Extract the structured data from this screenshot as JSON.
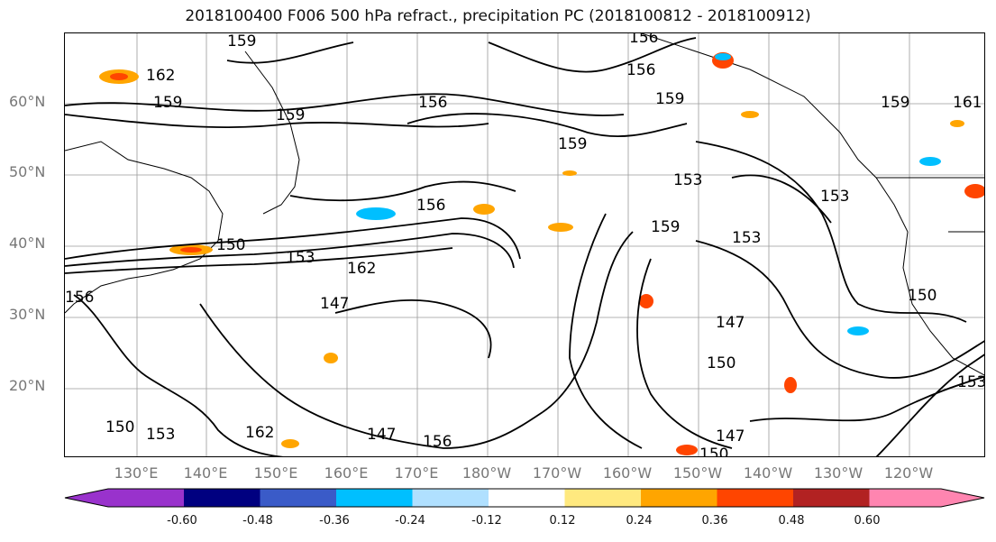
{
  "title": "2018100400 F006 500 hPa refract., precipitation PC (2018100812 - 2018100912)",
  "lat_labels": [
    "60°N",
    "50°N",
    "40°N",
    "30°N",
    "20°N"
  ],
  "lon_labels": [
    "130°E",
    "140°E",
    "150°E",
    "160°E",
    "170°E",
    "180°W",
    "170°W",
    "160°W",
    "150°W",
    "140°W",
    "130°W",
    "120°W"
  ],
  "colorbar": {
    "colors": [
      "#9932cc",
      "#000080",
      "#3a5bc8",
      "#00bfff",
      "#b0e0ff",
      "#ffffff",
      "#ffe97f",
      "#ffa500",
      "#ff4500",
      "#b22222",
      "#ff85b0"
    ],
    "tick_labels": [
      "-0.60",
      "-0.48",
      "-0.36",
      "-0.24",
      "-0.12",
      "0.12",
      "0.24",
      "0.36",
      "0.48",
      "0.60"
    ]
  },
  "contour_labels": [
    "159",
    "156",
    "156",
    "162",
    "159",
    "159",
    "159",
    "156",
    "159",
    "156",
    "153",
    "150",
    "153",
    "162",
    "147",
    "147",
    "150",
    "153",
    "153",
    "150",
    "147",
    "150",
    "153",
    "156",
    "162",
    "147",
    "150",
    "153",
    "156",
    "161",
    "159",
    "159"
  ]
}
